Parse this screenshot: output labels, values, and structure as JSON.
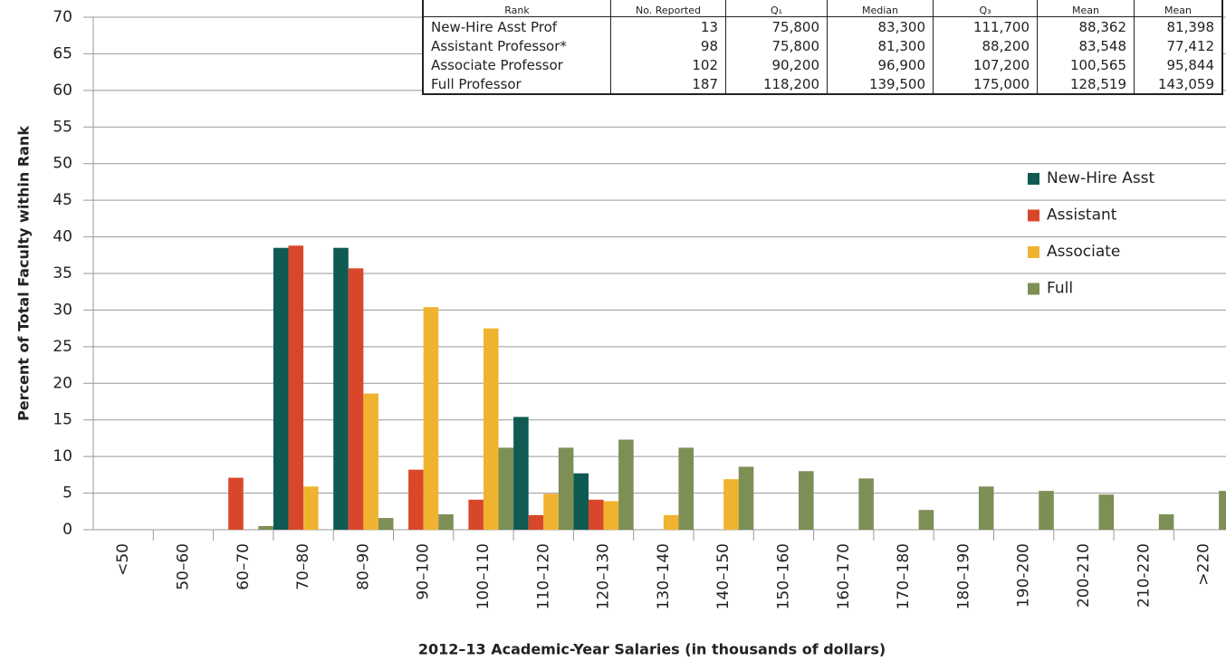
{
  "chart_data": {
    "type": "bar",
    "xlabel": "2012–13 Academic-Year Salaries (in thousands of dollars)",
    "ylabel": "Percent of Total Faculty within Rank",
    "categories": [
      "<50",
      "50–60",
      "60–70",
      "70–80",
      "80–90",
      "90–100",
      "100–110",
      "110–120",
      "120–130",
      "130–140",
      "140–150",
      "150–160",
      "160–170",
      "170–180",
      "180–190",
      "190-200",
      "200-210",
      "210-220",
      ">220"
    ],
    "series": [
      {
        "name": "New-Hire Asst",
        "color": "#0f5a52",
        "values": [
          0,
          0,
          0,
          38.5,
          38.5,
          0,
          0,
          15.4,
          7.7,
          0,
          0,
          0,
          0,
          0,
          0,
          0,
          0,
          0,
          0
        ]
      },
      {
        "name": "Assistant",
        "color": "#d9472b",
        "values": [
          0,
          0,
          7.1,
          38.8,
          35.7,
          8.2,
          4.1,
          2.0,
          4.1,
          0,
          0,
          0,
          0,
          0,
          0,
          0,
          0,
          0,
          0
        ]
      },
      {
        "name": "Associate",
        "color": "#f0b330",
        "values": [
          0,
          0,
          0,
          5.9,
          18.6,
          30.4,
          27.5,
          4.9,
          3.9,
          2.0,
          6.9,
          0,
          0,
          0,
          0,
          0,
          0,
          0,
          0
        ]
      },
      {
        "name": "Full",
        "color": "#7d8f55",
        "values": [
          0,
          0,
          0.5,
          0,
          1.6,
          2.1,
          11.2,
          11.2,
          12.3,
          11.2,
          8.6,
          8.0,
          7.0,
          2.7,
          5.9,
          5.3,
          4.8,
          2.1,
          5.3
        ]
      }
    ],
    "ylim": [
      0,
      70
    ],
    "yticks": [
      0,
      5,
      10,
      15,
      20,
      25,
      30,
      35,
      40,
      45,
      50,
      55,
      60,
      65,
      70
    ],
    "grid": true,
    "legend": "right"
  },
  "table": {
    "columns": [
      "Rank",
      "No. Reported",
      "Q₁",
      "Median",
      "Q₃",
      "Mean",
      "Mean"
    ],
    "rows": [
      [
        "New-Hire Asst Prof",
        "13",
        "75,800",
        "83,300",
        "111,700",
        "88,362",
        "81,398"
      ],
      [
        "Assistant Professor*",
        "98",
        "75,800",
        "81,300",
        "88,200",
        "83,548",
        "77,412"
      ],
      [
        "Associate Professor",
        "102",
        "90,200",
        "96,900",
        "107,200",
        "100,565",
        "95,844"
      ],
      [
        "Full Professor",
        "187",
        "118,200",
        "139,500",
        "175,000",
        "128,519",
        "143,059"
      ]
    ]
  }
}
